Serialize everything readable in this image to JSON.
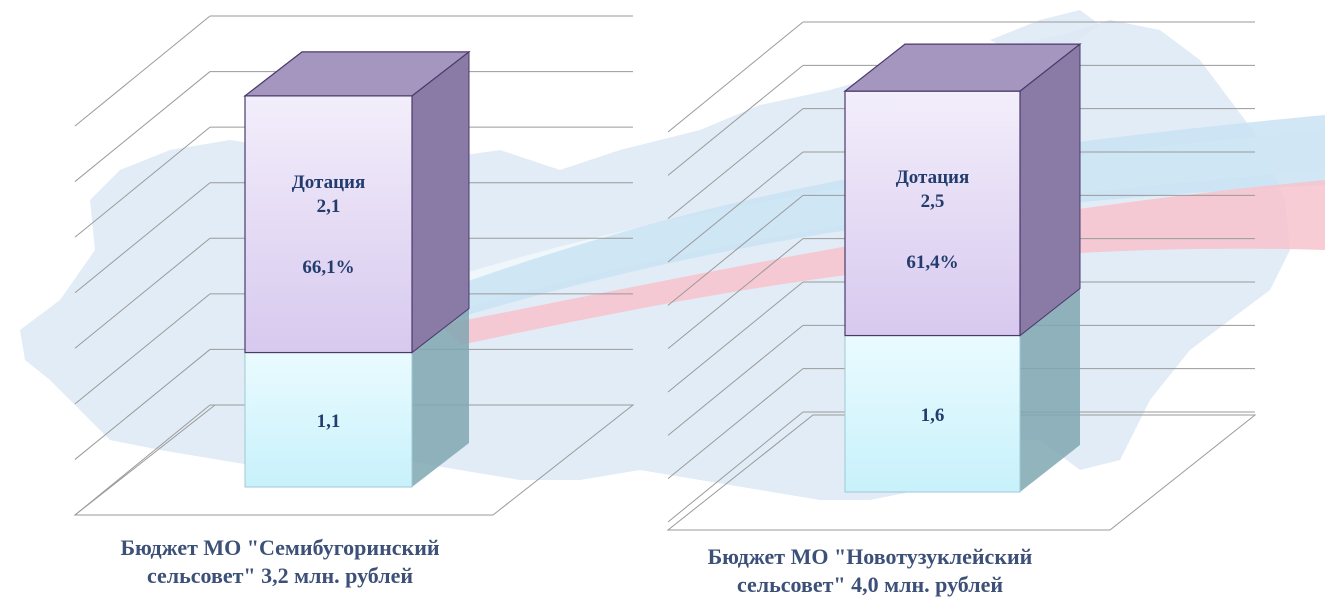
{
  "colors": {
    "subsidy_face": "#d7c9ee",
    "subsidy_side": "#8a7aa6",
    "subsidy_top": "#a596c0",
    "own_face": "#c8f1fb",
    "own_side": "#7fa7b2",
    "label_text": "#233c6e",
    "caption_text": "#3c5078",
    "gridline": "#9a9a9a",
    "flag_white": "#f2f8fc",
    "flag_blue": "#c9e3f3",
    "flag_red": "#f7c3cd",
    "map": "#dde9f5"
  },
  "chart_data": [
    {
      "type": "bar",
      "stacked": true,
      "three_d": true,
      "categories": [
        "Бюджет МО \"Семибугоринский сельсовет\" 3,2 млн. рублей"
      ],
      "total": 3.2,
      "series": [
        {
          "name": "",
          "values": [
            1.1
          ],
          "value_label": "1,1"
        },
        {
          "name": "Дотация",
          "values": [
            2.1
          ],
          "value_label": "2,1",
          "percent_label": "66,1%"
        }
      ],
      "caption_lines": [
        "Бюджет МО \"Семибугоринский",
        "сельсовет\" 3,2 млн. рублей"
      ],
      "grid": true,
      "ylim": [
        0,
        3.6
      ]
    },
    {
      "type": "bar",
      "stacked": true,
      "three_d": true,
      "categories": [
        "Бюджет МО \"Новотузуклейский сельсовет\" 4,0 млн. рублей"
      ],
      "total": 4.0,
      "series": [
        {
          "name": "",
          "values": [
            1.6
          ],
          "value_label": "1,6"
        },
        {
          "name": "Дотация",
          "values": [
            2.5
          ],
          "value_label": "2,5",
          "percent_label": "61,4%"
        }
      ],
      "caption_lines": [
        "Бюджет МО \"Новотузуклейский",
        "сельсовет\" 4,0 млн. рублей"
      ],
      "grid": true,
      "ylim": [
        0,
        4.5
      ]
    }
  ]
}
